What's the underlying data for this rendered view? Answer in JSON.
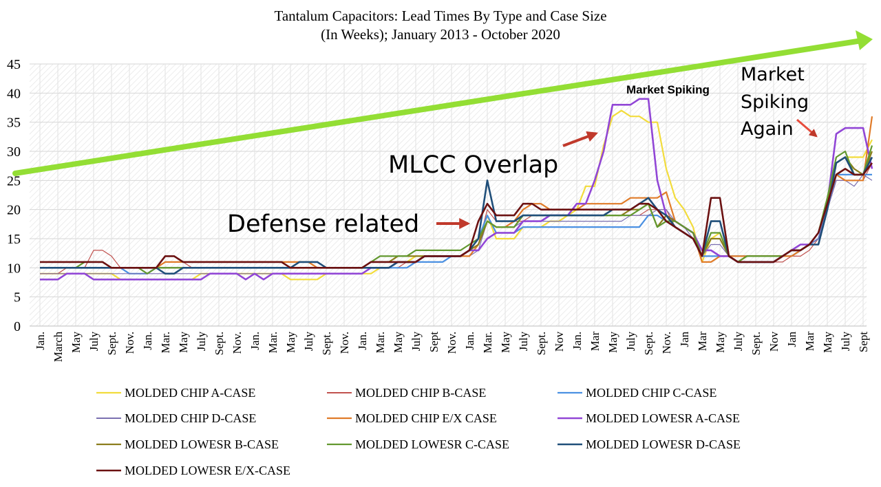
{
  "chart_data": {
    "type": "line",
    "title": "Tantalum  Capacitors: Lead Times By Type and Case Size",
    "subtitle": "(In Weeks); January 2013 - October 2020",
    "xlabel": "",
    "ylabel": "",
    "ylim": [
      0,
      45
    ],
    "yticks": [
      0,
      5,
      10,
      15,
      20,
      25,
      30,
      35,
      40,
      45
    ],
    "grid": true,
    "legend_position": "bottom",
    "x_tick_labels": [
      "Jan.",
      "March",
      "May",
      "July",
      "Sept.",
      "Nov.",
      "Jan.",
      "Mar.",
      "May",
      "July",
      "Sept.",
      "Nov.",
      "Jan.",
      "Mar.",
      "May",
      "July",
      "Sept.",
      "Nov.",
      "Jan.",
      "Mar.",
      "May",
      "July",
      "Sept",
      "Nov.",
      "Jan.",
      "Mar.",
      "May",
      "July",
      "Sept.",
      "Nov",
      "Jan.",
      "Mar",
      "May",
      "July",
      "Sept.",
      "Nov.",
      "Jan",
      "Mar",
      "May",
      "July",
      "Sept.",
      "Nov",
      "Jan",
      "Mar",
      "May",
      "July",
      "Sept"
    ],
    "x_points": 94,
    "x": [
      "2013-01",
      "2013-02",
      "2013-03",
      "2013-04",
      "2013-05",
      "2013-06",
      "2013-07",
      "2013-08",
      "2013-09",
      "2013-10",
      "2013-11",
      "2013-12",
      "2014-01",
      "2014-02",
      "2014-03",
      "2014-04",
      "2014-05",
      "2014-06",
      "2014-07",
      "2014-08",
      "2014-09",
      "2014-10",
      "2014-11",
      "2014-12",
      "2015-01",
      "2015-02",
      "2015-03",
      "2015-04",
      "2015-05",
      "2015-06",
      "2015-07",
      "2015-08",
      "2015-09",
      "2015-10",
      "2015-11",
      "2015-12",
      "2016-01",
      "2016-02",
      "2016-03",
      "2016-04",
      "2016-05",
      "2016-06",
      "2016-07",
      "2016-08",
      "2016-09",
      "2016-10",
      "2016-11",
      "2016-12",
      "2017-01",
      "2017-02",
      "2017-03",
      "2017-04",
      "2017-05",
      "2017-06",
      "2017-07",
      "2017-08",
      "2017-09",
      "2017-10",
      "2017-11",
      "2017-12",
      "2018-01",
      "2018-02",
      "2018-03",
      "2018-04",
      "2018-05",
      "2018-06",
      "2018-07",
      "2018-08",
      "2018-09",
      "2018-10",
      "2018-11",
      "2018-12",
      "2019-01",
      "2019-02",
      "2019-03",
      "2019-04",
      "2019-05",
      "2019-06",
      "2019-07",
      "2019-08",
      "2019-09",
      "2019-10",
      "2019-11",
      "2019-12",
      "2020-01",
      "2020-02",
      "2020-03",
      "2020-04",
      "2020-05",
      "2020-06",
      "2020-07",
      "2020-08",
      "2020-09",
      "2020-10"
    ],
    "series": [
      {
        "name": "MOLDED CHIP A-CASE",
        "color": "#f2dc3c",
        "width": 2.2,
        "values": [
          9,
          9,
          9,
          9,
          9,
          9,
          9,
          9,
          9,
          8,
          8,
          8,
          8,
          8,
          8,
          8,
          8,
          8,
          9,
          9,
          9,
          9,
          9,
          9,
          9,
          9,
          9,
          9,
          8,
          8,
          8,
          8,
          9,
          9,
          9,
          9,
          9,
          9,
          10,
          10,
          11,
          11,
          12,
          12,
          12,
          12,
          12,
          12,
          13,
          15,
          19,
          15,
          15,
          15,
          17,
          17,
          17,
          18,
          18,
          19,
          20,
          24,
          24,
          31,
          36,
          37,
          36,
          36,
          35,
          35,
          27,
          22,
          20,
          17,
          11,
          15,
          16,
          12,
          11,
          12,
          12,
          12,
          12,
          12,
          13,
          13,
          14,
          16,
          20,
          28,
          29,
          29,
          29,
          32
        ]
      },
      {
        "name": "MOLDED CHIP B-CASE",
        "color": "#c0504d",
        "width": 1.2,
        "values": [
          9,
          9,
          9,
          10,
          10,
          10,
          13,
          13,
          12,
          10,
          10,
          10,
          10,
          10,
          11,
          11,
          11,
          10,
          10,
          10,
          10,
          10,
          10,
          10,
          10,
          10,
          10,
          10,
          10,
          10,
          10,
          10,
          10,
          10,
          10,
          10,
          10,
          10,
          10,
          10,
          10,
          11,
          11,
          12,
          12,
          12,
          12,
          12,
          13,
          14,
          20,
          18,
          18,
          18,
          18,
          19,
          19,
          19,
          19,
          19,
          19,
          19,
          19,
          19,
          19,
          19,
          19,
          19,
          20,
          20,
          20,
          17,
          16,
          15,
          12,
          12,
          12,
          12,
          11,
          11,
          11,
          11,
          11,
          11,
          12,
          12,
          13,
          15,
          20,
          25,
          25,
          25,
          25,
          28
        ]
      },
      {
        "name": "MOLDED CHIP C-CASE",
        "color": "#4a90e2",
        "width": 2.2,
        "values": [
          10,
          10,
          10,
          10,
          10,
          10,
          10,
          10,
          10,
          10,
          9,
          9,
          9,
          10,
          10,
          10,
          10,
          10,
          10,
          10,
          10,
          10,
          10,
          10,
          10,
          10,
          10,
          10,
          10,
          10,
          10,
          10,
          10,
          10,
          10,
          10,
          10,
          10,
          10,
          10,
          10,
          10,
          11,
          11,
          11,
          11,
          12,
          12,
          13,
          15,
          19,
          16,
          16,
          16,
          17,
          17,
          17,
          17,
          17,
          17,
          17,
          17,
          17,
          17,
          17,
          17,
          17,
          17,
          19,
          19,
          18,
          17,
          16,
          15,
          12,
          12,
          12,
          12,
          12,
          12,
          12,
          12,
          12,
          12,
          12,
          13,
          14,
          15,
          20,
          26,
          26,
          26,
          26,
          26
        ]
      },
      {
        "name": "MOLDED CHIP D-CASE",
        "color": "#7a6fb0",
        "width": 1.2,
        "values": [
          9,
          9,
          9,
          9,
          9,
          9,
          9,
          9,
          9,
          9,
          9,
          9,
          9,
          9,
          9,
          9,
          9,
          9,
          9,
          9,
          9,
          9,
          9,
          9,
          9,
          9,
          9,
          9,
          9,
          9,
          9,
          9,
          9,
          9,
          9,
          9,
          9,
          10,
          10,
          10,
          11,
          11,
          11,
          12,
          12,
          12,
          12,
          12,
          12,
          13,
          18,
          17,
          17,
          17,
          18,
          18,
          18,
          18,
          18,
          18,
          18,
          18,
          18,
          18,
          18,
          18,
          19,
          19,
          19,
          20,
          20,
          18,
          17,
          15,
          12,
          14,
          14,
          12,
          11,
          11,
          11,
          11,
          11,
          12,
          13,
          13,
          14,
          15,
          20,
          25,
          25,
          24,
          26,
          25
        ]
      },
      {
        "name": "MOLDED CHIP E/X CASE",
        "color": "#e07b28",
        "width": 2.2,
        "values": [
          10,
          10,
          10,
          10,
          10,
          10,
          10,
          10,
          10,
          10,
          10,
          10,
          10,
          10,
          11,
          11,
          11,
          11,
          11,
          11,
          11,
          11,
          11,
          11,
          11,
          11,
          11,
          11,
          11,
          11,
          11,
          10,
          10,
          10,
          10,
          10,
          10,
          10,
          10,
          10,
          11,
          11,
          11,
          12,
          12,
          12,
          12,
          12,
          12,
          14,
          18,
          17,
          17,
          18,
          20,
          21,
          21,
          20,
          20,
          20,
          20,
          21,
          21,
          21,
          21,
          21,
          22,
          22,
          22,
          22,
          23,
          18,
          17,
          16,
          11,
          11,
          12,
          12,
          12,
          12,
          12,
          12,
          12,
          12,
          12,
          13,
          14,
          16,
          21,
          26,
          25,
          25,
          25,
          36
        ]
      },
      {
        "name": "MOLDED LOWESR A-CASE",
        "color": "#9146d6",
        "width": 2.6,
        "values": [
          8,
          8,
          8,
          9,
          9,
          9,
          8,
          8,
          8,
          8,
          8,
          8,
          8,
          8,
          8,
          8,
          8,
          8,
          8,
          9,
          9,
          9,
          9,
          8,
          9,
          8,
          9,
          9,
          9,
          9,
          9,
          9,
          9,
          9,
          9,
          9,
          9,
          10,
          10,
          10,
          11,
          11,
          11,
          12,
          12,
          12,
          12,
          12,
          13,
          13,
          15,
          16,
          16,
          16,
          18,
          18,
          18,
          19,
          19,
          19,
          21,
          21,
          25,
          30,
          38,
          38,
          38,
          39,
          39,
          25,
          19,
          18,
          17,
          16,
          13,
          13,
          12,
          12,
          11,
          11,
          11,
          11,
          11,
          12,
          13,
          14,
          14,
          16,
          21,
          33,
          34,
          34,
          34,
          27
        ]
      },
      {
        "name": "MOLDED LOWESR B-CASE",
        "color": "#8b7d1c",
        "width": 2.2,
        "values": [
          10,
          10,
          10,
          10,
          10,
          10,
          10,
          10,
          10,
          10,
          10,
          10,
          10,
          10,
          10,
          10,
          10,
          10,
          10,
          10,
          10,
          10,
          10,
          10,
          10,
          10,
          10,
          10,
          10,
          10,
          10,
          10,
          10,
          10,
          10,
          10,
          10,
          11,
          11,
          11,
          12,
          12,
          12,
          12,
          12,
          12,
          12,
          12,
          13,
          14,
          18,
          17,
          17,
          17,
          19,
          19,
          19,
          19,
          19,
          19,
          19,
          19,
          19,
          19,
          19,
          19,
          20,
          20,
          21,
          17,
          19,
          18,
          17,
          16,
          12,
          15,
          15,
          12,
          11,
          12,
          12,
          12,
          12,
          12,
          13,
          13,
          14,
          16,
          21,
          28,
          29,
          27,
          26,
          30
        ]
      },
      {
        "name": "MOLDED LOWESR C-CASE",
        "color": "#62982f",
        "width": 2.2,
        "values": [
          10,
          10,
          10,
          10,
          10,
          11,
          11,
          11,
          10,
          10,
          10,
          10,
          9,
          10,
          10,
          10,
          10,
          10,
          10,
          10,
          10,
          10,
          10,
          10,
          10,
          10,
          10,
          10,
          10,
          10,
          10,
          10,
          10,
          10,
          10,
          10,
          10,
          11,
          12,
          12,
          12,
          12,
          13,
          13,
          13,
          13,
          13,
          13,
          14,
          15,
          18,
          17,
          17,
          17,
          19,
          19,
          19,
          19,
          19,
          19,
          19,
          19,
          19,
          19,
          19,
          19,
          19,
          20,
          21,
          17,
          18,
          18,
          17,
          16,
          12,
          16,
          16,
          12,
          11,
          12,
          12,
          12,
          12,
          12,
          13,
          13,
          14,
          16,
          22,
          29,
          30,
          26,
          26,
          31
        ]
      },
      {
        "name": "MOLDED LOWESR D-CASE",
        "color": "#1f4e79",
        "width": 2.6,
        "values": [
          10,
          10,
          10,
          10,
          10,
          10,
          10,
          10,
          10,
          10,
          10,
          10,
          10,
          10,
          9,
          9,
          10,
          10,
          10,
          10,
          10,
          10,
          10,
          10,
          10,
          10,
          10,
          10,
          10,
          11,
          11,
          11,
          10,
          10,
          10,
          10,
          10,
          10,
          10,
          10,
          11,
          11,
          11,
          12,
          12,
          12,
          12,
          12,
          13,
          15,
          25,
          18,
          18,
          18,
          19,
          19,
          19,
          19,
          19,
          19,
          19,
          19,
          19,
          19,
          20,
          20,
          20,
          21,
          22,
          20,
          19,
          17,
          16,
          15,
          12,
          18,
          18,
          12,
          11,
          11,
          11,
          11,
          11,
          12,
          13,
          13,
          14,
          14,
          20,
          28,
          29,
          26,
          26,
          29
        ]
      },
      {
        "name": "MOLDED LOWESR E/X-CASE",
        "color": "#6b1111",
        "width": 2.6,
        "values": [
          11,
          11,
          11,
          11,
          11,
          11,
          11,
          11,
          10,
          10,
          10,
          10,
          10,
          10,
          12,
          12,
          11,
          11,
          11,
          11,
          11,
          11,
          11,
          11,
          11,
          11,
          11,
          11,
          10,
          10,
          10,
          10,
          10,
          10,
          10,
          10,
          10,
          11,
          11,
          11,
          11,
          11,
          11,
          12,
          12,
          12,
          12,
          12,
          13,
          18,
          21,
          19,
          19,
          19,
          21,
          21,
          20,
          20,
          20,
          20,
          20,
          20,
          20,
          20,
          20,
          20,
          20,
          21,
          21,
          20,
          18,
          17,
          16,
          15,
          12,
          22,
          22,
          12,
          11,
          11,
          11,
          11,
          11,
          12,
          13,
          13,
          14,
          16,
          21,
          26,
          27,
          26,
          26,
          28
        ]
      }
    ],
    "annotations": {
      "defense": "Defense related",
      "mlcc": "MLCC Overlap",
      "market_spiking": "Market Spiking",
      "market_spiking_again": [
        "Market",
        "Spiking",
        "Again"
      ]
    }
  }
}
